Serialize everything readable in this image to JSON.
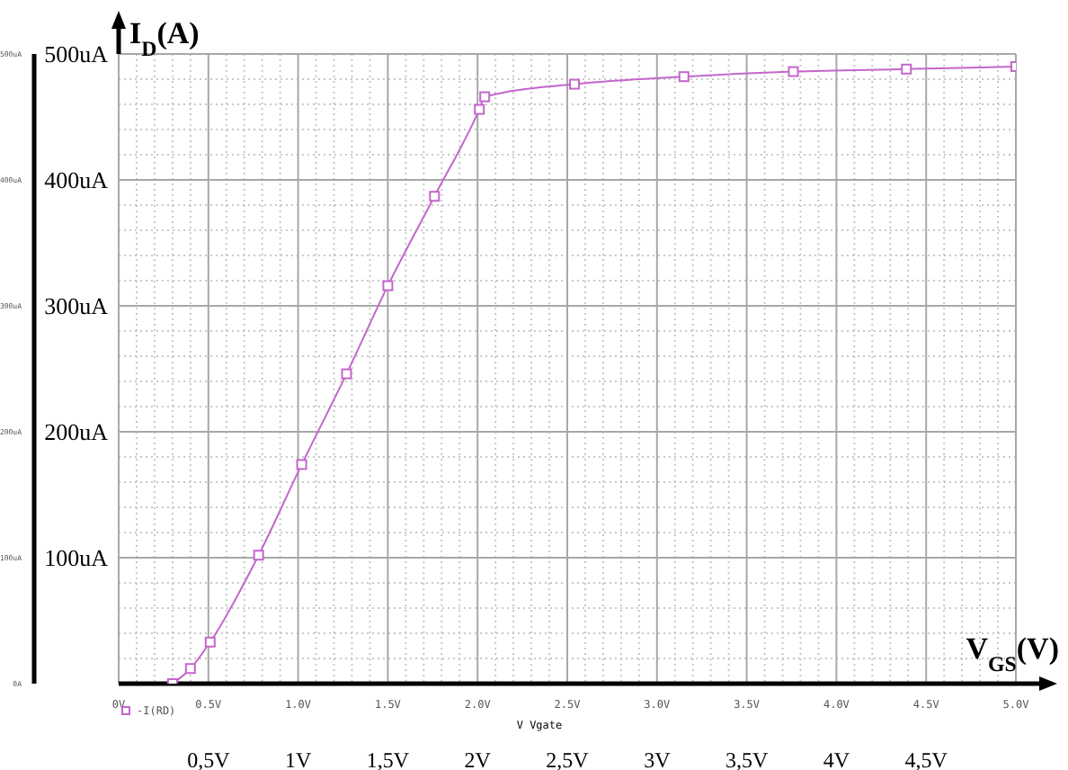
{
  "chart_data": {
    "type": "line",
    "ylabel": "I$_{D}$(A)",
    "xlabel": "V Vgate",
    "x2label": "V$_{GS}$(V)",
    "x": [
      0.3,
      0.4,
      0.51,
      0.78,
      1.02,
      1.27,
      1.5,
      1.76,
      2.01,
      2.04,
      2.54,
      3.15,
      3.76,
      4.39,
      5.0
    ],
    "series": [
      {
        "name": "-I(RD)",
        "color": "#c466cc",
        "values": [
          0,
          12,
          33,
          102,
          174,
          246,
          316,
          387,
          456,
          466,
          476,
          482,
          486,
          488,
          490
        ]
      }
    ],
    "xlim": [
      0,
      5
    ],
    "xticks": [
      {
        "value": 0,
        "label": "0V"
      },
      {
        "value": 0.5,
        "label": "0.5V"
      },
      {
        "value": 1,
        "label": "1.0V"
      },
      {
        "value": 1.5,
        "label": "1.5V"
      },
      {
        "value": 2,
        "label": "2.0V"
      },
      {
        "value": 2.5,
        "label": "2.5V"
      },
      {
        "value": 3,
        "label": "3.0V"
      },
      {
        "value": 3.5,
        "label": "3.5V"
      },
      {
        "value": 4,
        "label": "4.0V"
      },
      {
        "value": 4.5,
        "label": "4.5V"
      },
      {
        "value": 5,
        "label": "5.0V"
      }
    ],
    "x2lim": [
      0,
      5
    ],
    "x2ticks": [
      {
        "value": 0.5,
        "label": "0,5V"
      },
      {
        "value": 1,
        "label": "1V"
      },
      {
        "value": 1.5,
        "label": "1,5V"
      },
      {
        "value": 2,
        "label": "2V"
      },
      {
        "value": 2.5,
        "label": "2,5V"
      },
      {
        "value": 3,
        "label": "3V"
      },
      {
        "value": 3.5,
        "label": "3,5V"
      },
      {
        "value": 4,
        "label": "4V"
      },
      {
        "value": 4.5,
        "label": "4,5V"
      }
    ],
    "ylim": [
      0,
      500
    ],
    "yticks": [
      {
        "value": 100,
        "label": "100uA"
      },
      {
        "value": 200,
        "label": "200uA"
      },
      {
        "value": 300,
        "label": "300uA"
      },
      {
        "value": 400,
        "label": "400uA"
      },
      {
        "value": 500,
        "label": "500uA"
      }
    ],
    "y2lim": [
      0,
      500
    ],
    "y2ticks": [
      {
        "value": 0,
        "label": "0A"
      },
      {
        "value": 100,
        "label": "100uA"
      },
      {
        "value": 200,
        "label": "200uA"
      },
      {
        "value": 300,
        "label": "300uA"
      },
      {
        "value": 400,
        "label": "400uA"
      },
      {
        "value": 500,
        "label": "500uA"
      }
    ],
    "grid": true,
    "legend": "bottom left",
    "marker": "square",
    "line_style": "solid"
  }
}
